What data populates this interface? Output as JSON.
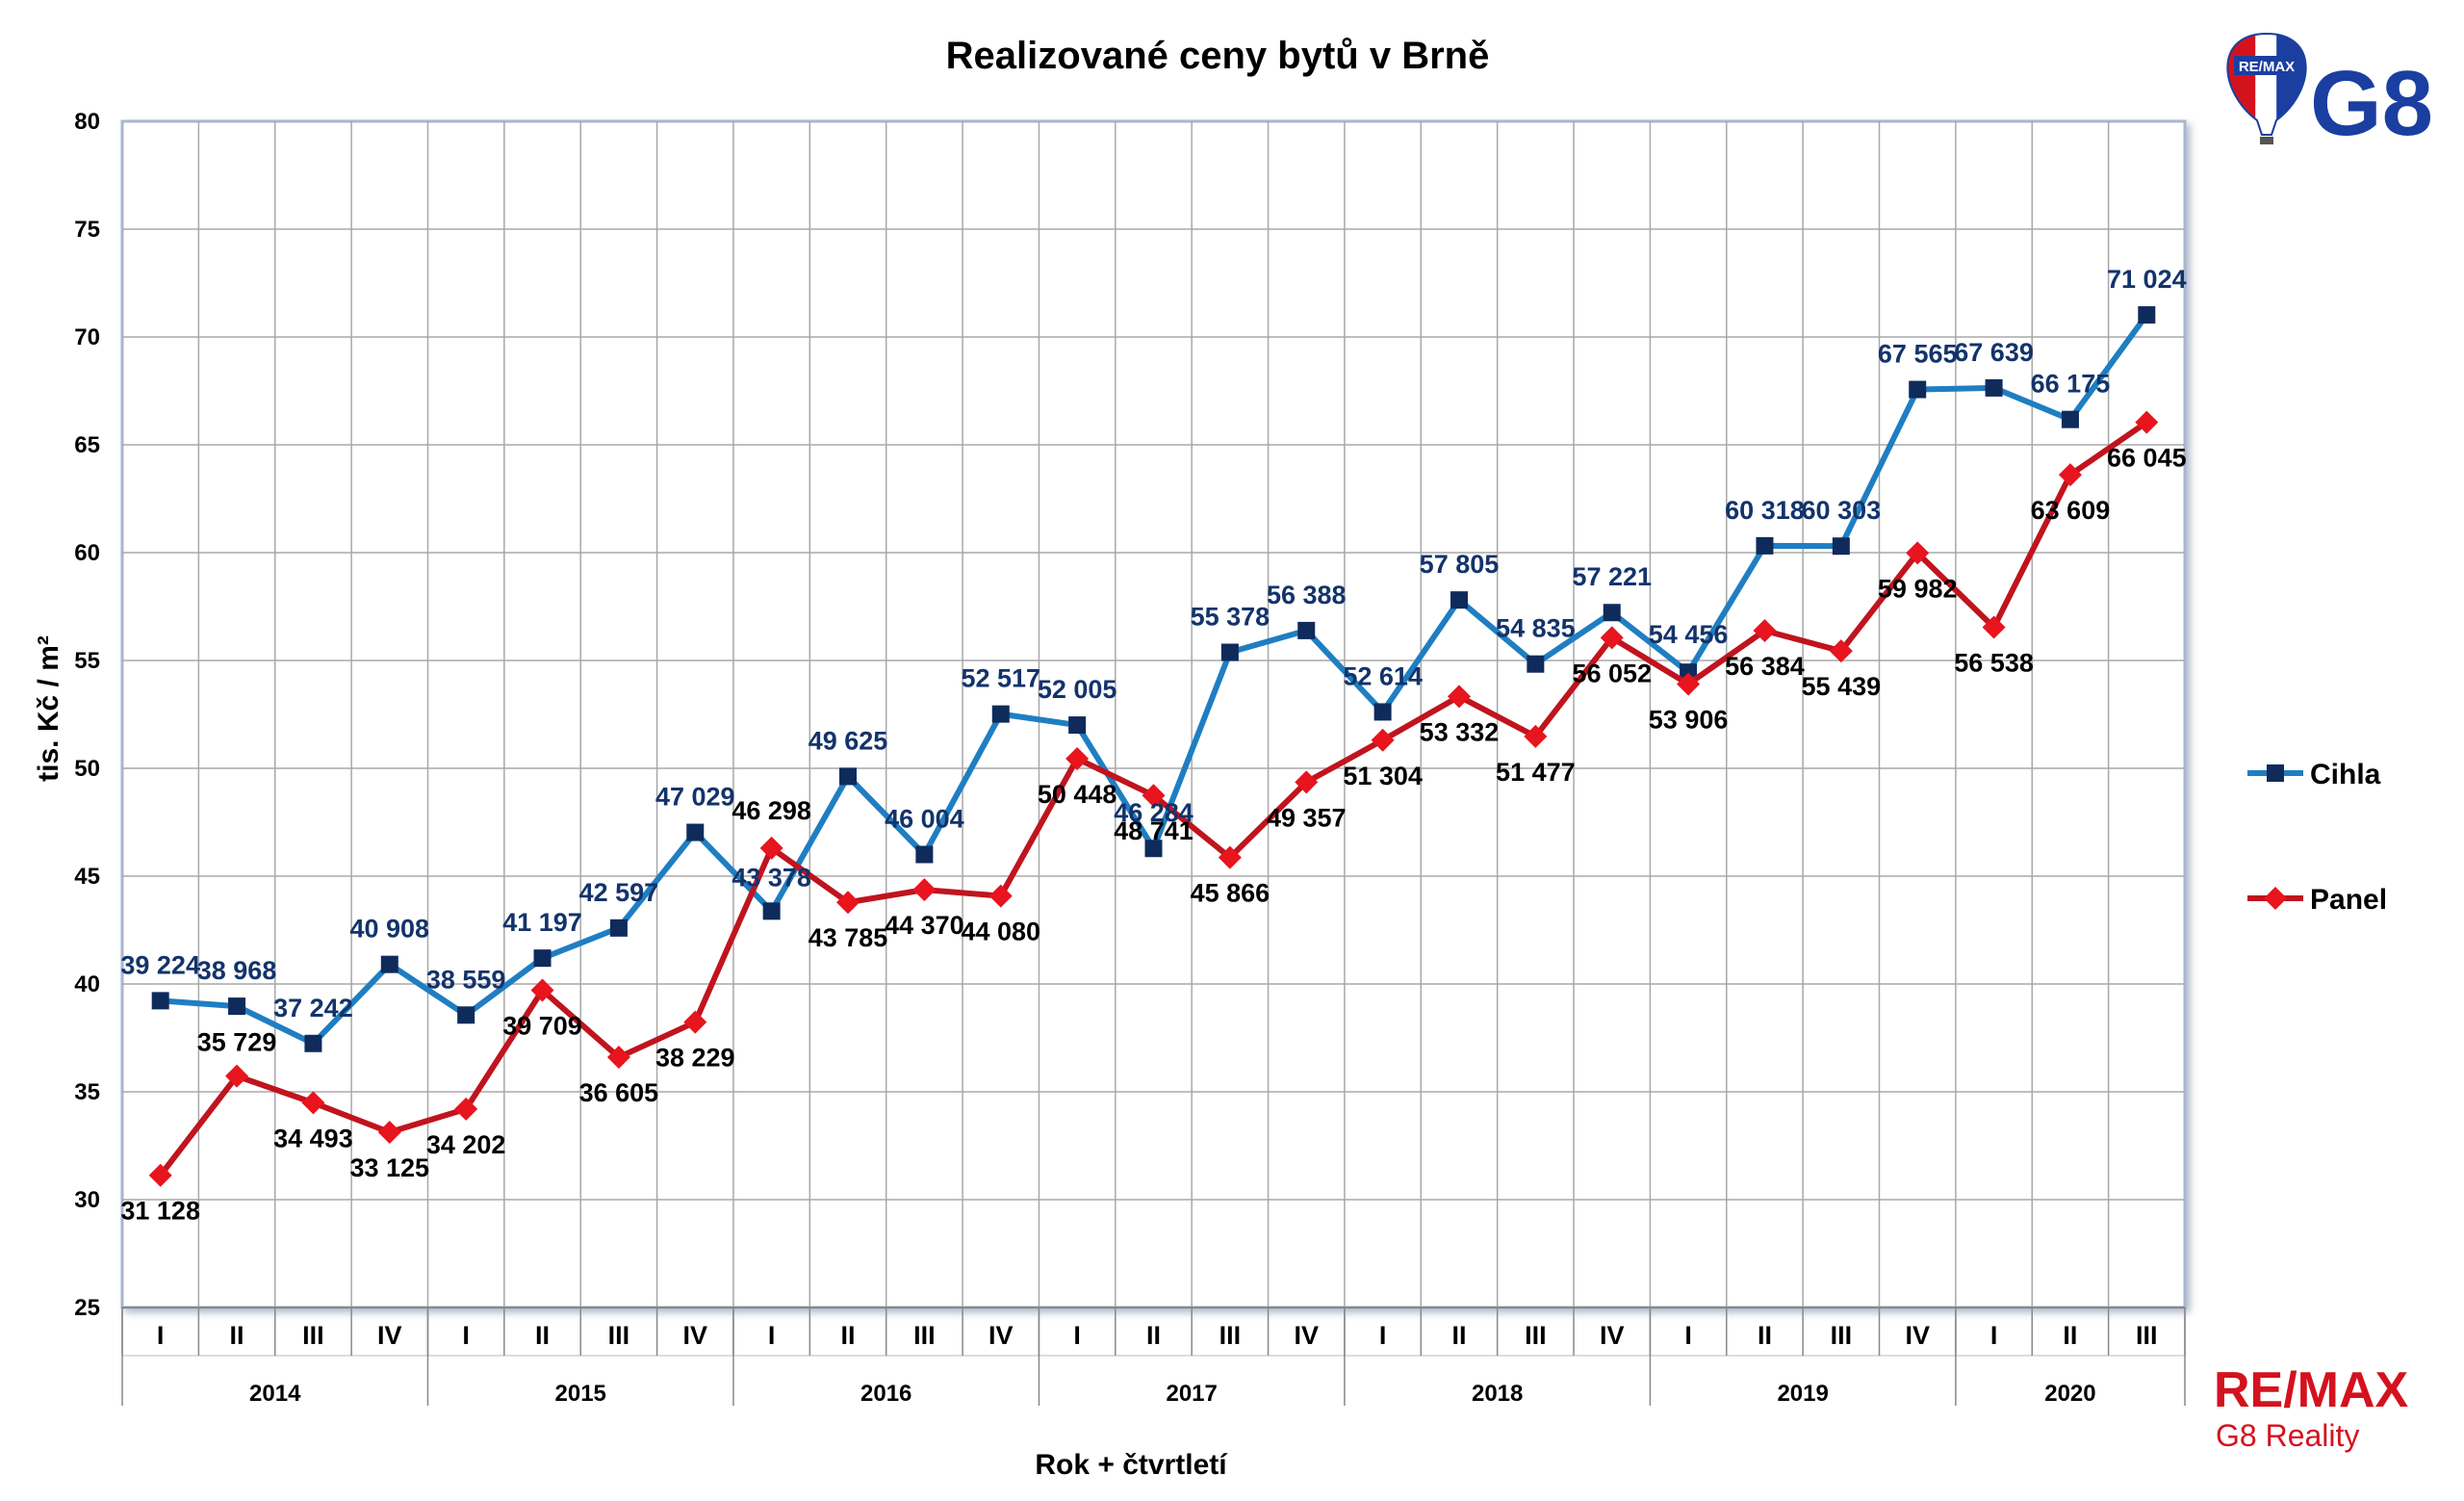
{
  "chart_data": {
    "type": "line",
    "title": "Realizované ceny bytů v Brně",
    "xlabel": "Rok + čtvrtletí",
    "ylabel": "tis. Kč / m²",
    "ylim": [
      25,
      80
    ],
    "yticks": [
      "25",
      "30",
      "35",
      "40",
      "45",
      "50",
      "55",
      "60",
      "65",
      "70",
      "75",
      "80"
    ],
    "grid": true,
    "legend_position": "right",
    "years": [
      {
        "label": "2014",
        "quarters": 4
      },
      {
        "label": "2015",
        "quarters": 4
      },
      {
        "label": "2016",
        "quarters": 4
      },
      {
        "label": "2017",
        "quarters": 4
      },
      {
        "label": "2018",
        "quarters": 4
      },
      {
        "label": "2019",
        "quarters": 4
      },
      {
        "label": "2020",
        "quarters": 3
      }
    ],
    "categories": [
      "I",
      "II",
      "III",
      "IV",
      "I",
      "II",
      "III",
      "IV",
      "I",
      "II",
      "III",
      "IV",
      "I",
      "II",
      "III",
      "IV",
      "I",
      "II",
      "III",
      "IV",
      "I",
      "II",
      "III",
      "IV",
      "I",
      "II",
      "III"
    ],
    "series": [
      {
        "name": "Cihla",
        "color": "#1f7ec2",
        "marker_color": "#0f2b5b",
        "marker": "square",
        "values": [
          39.224,
          38.968,
          37.242,
          40.908,
          38.559,
          41.197,
          42.597,
          47.029,
          43.378,
          49.625,
          46.004,
          52.517,
          52.005,
          46.284,
          55.378,
          56.388,
          52.614,
          57.805,
          54.835,
          57.221,
          54.456,
          60.318,
          60.303,
          67.565,
          67.639,
          66.175,
          71.024
        ],
        "labels": [
          "39 224",
          "38 968",
          "37 242",
          "40 908",
          "38 559",
          "41 197",
          "42 597",
          "47 029",
          "43 378",
          "49 625",
          "46 004",
          "52 517",
          "52 005",
          "46 284",
          "55 378",
          "56 388",
          "52 614",
          "57 805",
          "54 835",
          "57 221",
          "54 456",
          "60 318",
          "60 303",
          "67 565",
          "67 639",
          "66 175",
          "71 024"
        ]
      },
      {
        "name": "Panel",
        "color": "#c0141e",
        "marker_color": "#e8141e",
        "marker": "diamond",
        "values": [
          31.128,
          35.729,
          34.493,
          33.125,
          34.202,
          39.709,
          36.605,
          38.229,
          46.298,
          43.785,
          44.37,
          44.08,
          50.448,
          48.741,
          45.866,
          49.357,
          51.304,
          53.332,
          51.477,
          56.052,
          53.906,
          56.384,
          55.439,
          59.982,
          56.538,
          63.609,
          66.045
        ],
        "labels": [
          "31 128",
          "35 729",
          "34 493",
          "33 125",
          "34 202",
          "39 709",
          "36 605",
          "38 229",
          "46 298",
          "43 785",
          "44 370",
          "44 080",
          "50 448",
          "48 741",
          "45 866",
          "49 357",
          "51 304",
          "53 332",
          "51 477",
          "56 052",
          "53 906",
          "56 384",
          "55 439",
          "59 982",
          "56 538",
          "63 609",
          "66 045"
        ]
      }
    ]
  },
  "logos": {
    "balloon_text": "RE/MAX",
    "g8_text": "G8",
    "remax_text": "RE/MAX",
    "remax_sub": "G8 Reality"
  }
}
